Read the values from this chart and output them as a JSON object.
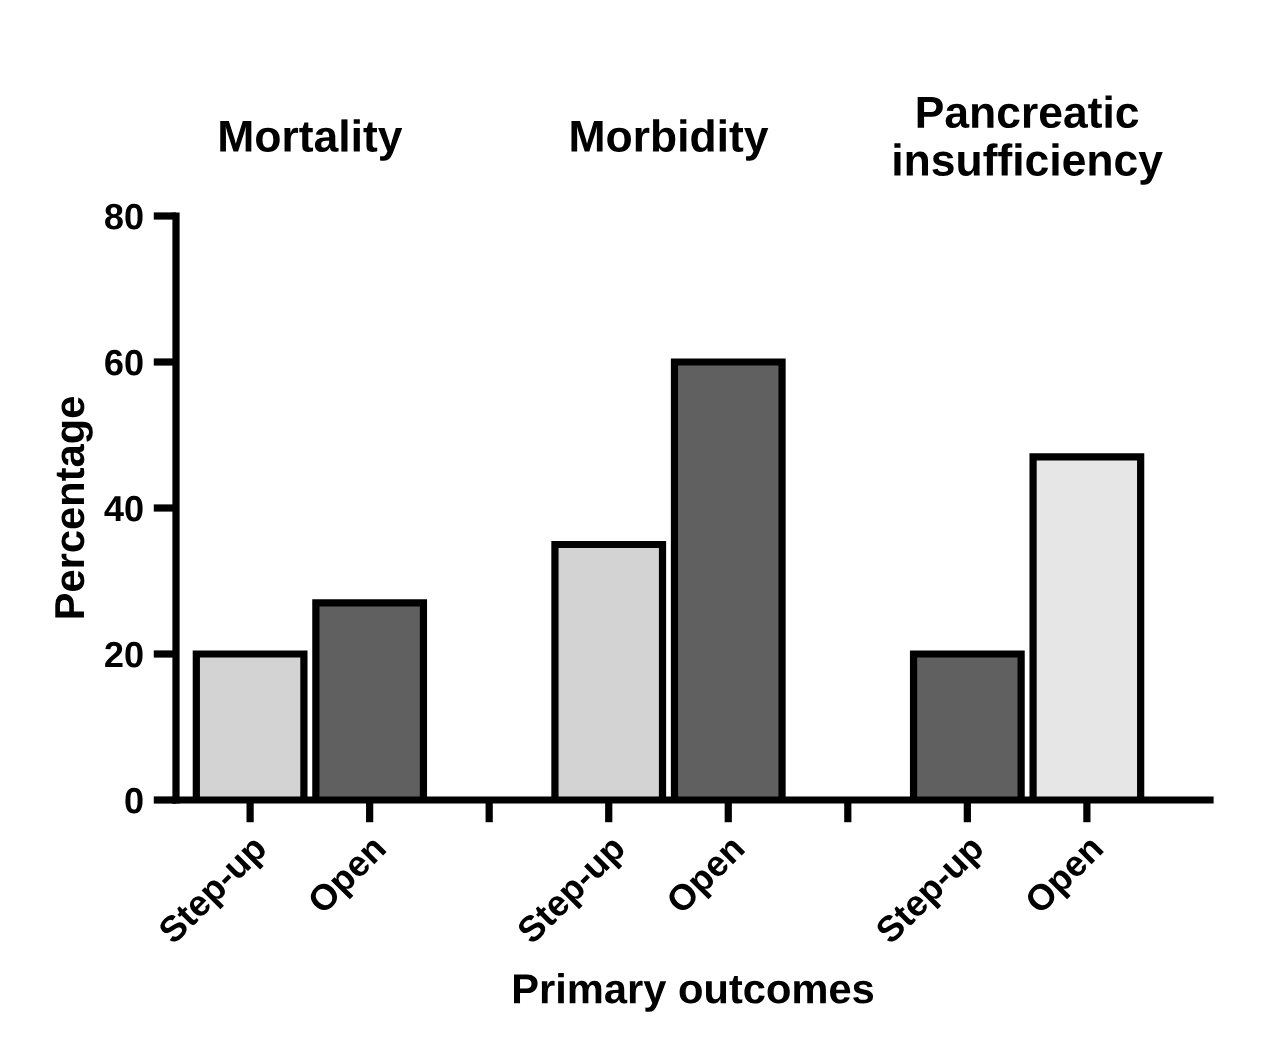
{
  "chart_data": {
    "type": "bar",
    "xlabel": "Primary outcomes",
    "ylabel": "Percentage",
    "categories": [
      "Step-up",
      "Open",
      null,
      "Step-up",
      "Open",
      null,
      "Step-up",
      "Open"
    ],
    "values": [
      20,
      27,
      null,
      35,
      60,
      null,
      20,
      47
    ],
    "colors": [
      "#d3d3d3",
      "#606060",
      null,
      "#d3d3d3",
      "#606060",
      null,
      "#606060",
      "#e6e6e6"
    ],
    "annotations": [
      "Mortality",
      "Morbidity",
      "Pancreatic\ninsufficiency"
    ],
    "ylim": [
      0,
      80
    ],
    "yticks": [
      0,
      20,
      40,
      60,
      80
    ],
    "grid": false,
    "legend": false
  }
}
